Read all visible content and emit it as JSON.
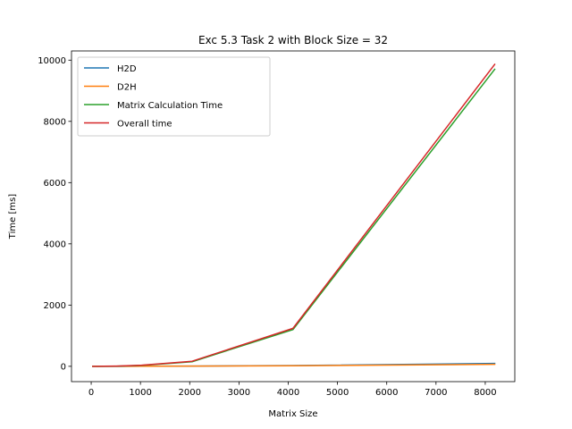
{
  "chart_data": {
    "type": "line",
    "title": "Exc 5.3 Task 2 with Block Size = 32",
    "xlabel": "Matrix Size",
    "ylabel": "Time [ms]",
    "xlim": [
      -400,
      8600
    ],
    "ylim": [
      -500,
      10300
    ],
    "xticks": [
      0,
      1000,
      2000,
      3000,
      4000,
      5000,
      6000,
      7000,
      8000
    ],
    "xtick_labels": [
      "0",
      "1000",
      "2000",
      "3000",
      "4000",
      "5000",
      "6000",
      "7000",
      "8000"
    ],
    "yticks": [
      0,
      2000,
      4000,
      6000,
      8000,
      10000
    ],
    "ytick_labels": [
      "0",
      "2000",
      "4000",
      "6000",
      "8000",
      "10000"
    ],
    "grid": false,
    "legend_position": "top-left",
    "x": [
      32,
      64,
      128,
      256,
      512,
      1024,
      2048,
      4096,
      8192
    ],
    "series": [
      {
        "name": "H2D",
        "color": "#1f77b4",
        "values": [
          0.1,
          0.1,
          0.2,
          0.4,
          1,
          3,
          8,
          24,
          95
        ]
      },
      {
        "name": "D2H",
        "color": "#ff7f0e",
        "values": [
          0.1,
          0.1,
          0.2,
          0.3,
          0.8,
          2,
          6,
          18,
          65
        ]
      },
      {
        "name": "Matrix Calculation Time",
        "color": "#2ca02c",
        "values": [
          0.1,
          0.2,
          0.5,
          1,
          5,
          30,
          150,
          1200,
          9700
        ]
      },
      {
        "name": "Overall time",
        "color": "#d62728",
        "values": [
          0.3,
          0.4,
          0.9,
          1.7,
          7,
          35,
          165,
          1240,
          9860
        ]
      }
    ]
  }
}
